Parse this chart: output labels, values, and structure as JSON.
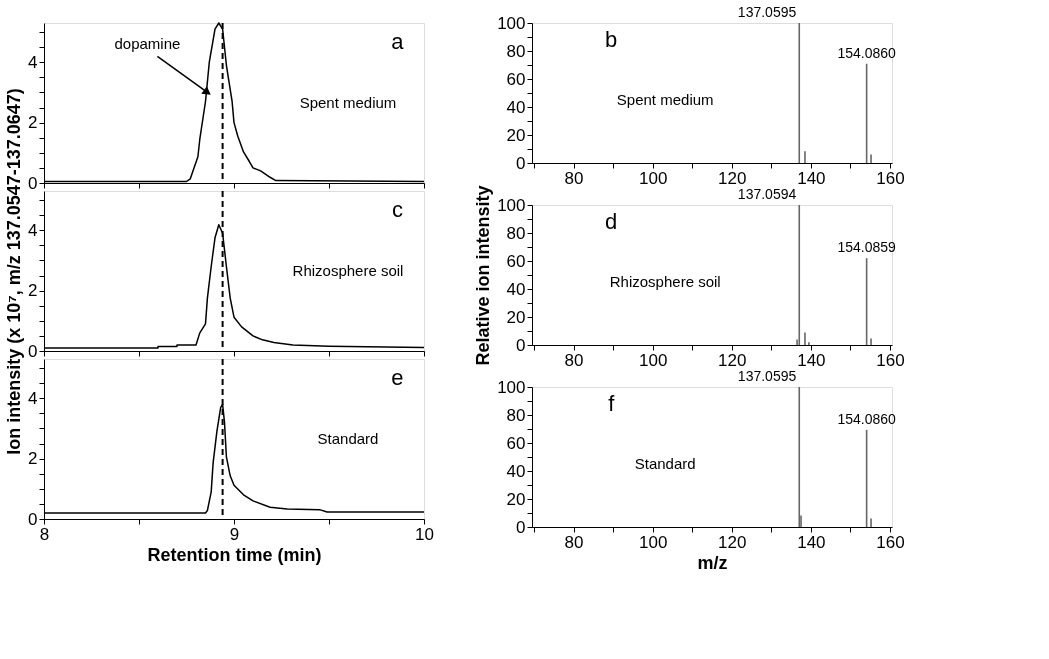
{
  "chart_data": [
    {
      "type": "line",
      "annotations": [
        "a",
        "Spent medium",
        {
          "text": "dopamine",
          "x": 8.86,
          "y": 3.0
        }
      ],
      "series": [
        {
          "color": "#000000",
          "x": [
            8,
            8.75,
            8.77,
            8.81,
            8.82,
            8.85,
            8.87,
            8.9,
            8.92,
            8.94,
            8.96,
            8.99,
            9.0,
            9.02,
            9.05,
            9.08,
            9.1,
            9.14,
            9.19,
            9.22,
            10
          ],
          "values": [
            0.05,
            0.05,
            0.14,
            0.87,
            1.45,
            2.7,
            4.0,
            5.1,
            5.3,
            5.1,
            3.9,
            2.7,
            2.0,
            1.55,
            1.03,
            0.72,
            0.5,
            0.4,
            0.19,
            0.08,
            0.05
          ]
        }
      ],
      "xlim": [
        8,
        10
      ],
      "xticks": [
        8,
        {
          "value": 8.5,
          "label": null
        },
        9,
        {
          "value": 9.5,
          "label": null
        },
        10
      ],
      "ylim": [
        0,
        5.3
      ],
      "yticks": [
        0,
        {
          "value": 0.5,
          "label": null
        },
        {
          "value": 1,
          "label": null
        },
        {
          "value": 1.5,
          "label": null
        },
        2,
        {
          "value": 2.5,
          "label": null
        },
        {
          "value": 3,
          "label": null
        },
        {
          "value": 3.5,
          "label": null
        },
        4,
        {
          "value": 4.5,
          "label": null
        },
        {
          "value": 5,
          "label": null
        }
      ],
      "ref_lines": [
        {
          "axis": "x",
          "value": 8.94,
          "line_style": "dashed",
          "color": "#000000"
        }
      ],
      "tick_labels": "y"
    },
    {
      "type": "bar",
      "annotations": [
        "b",
        "Spent medium",
        {
          "text": "137.0595",
          "x": 137.06,
          "y": 100
        },
        {
          "text": "154.0860",
          "x": 154.09,
          "y": 70.9
        }
      ],
      "series": [
        {
          "color": "#666666",
          "x": [
            137.06,
            138.5,
            154.09,
            155.2
          ],
          "values": [
            100,
            8.4,
            70.9,
            6.1
          ]
        }
      ],
      "xlim": [
        69.5,
        160.5
      ],
      "xticks": [
        {
          "value": 70,
          "label": null
        },
        80,
        {
          "value": 90,
          "label": null
        },
        100,
        {
          "value": 110,
          "label": null
        },
        120,
        {
          "value": 130,
          "label": null
        },
        140,
        {
          "value": 150,
          "label": null
        },
        160
      ],
      "ylim": [
        0,
        100
      ],
      "yticks": [
        0,
        {
          "value": 10,
          "label": null
        },
        20,
        {
          "value": 30,
          "label": null
        },
        40,
        {
          "value": 50,
          "label": null
        },
        60,
        {
          "value": 70,
          "label": null
        },
        80,
        {
          "value": 90,
          "label": null
        },
        100
      ]
    },
    {
      "type": "line",
      "ylabel": "Ion intensity (x 10⁷, m/z 137.0547-137.0647)",
      "annotations": [
        "c",
        "Rhizosphere soil"
      ],
      "series": [
        {
          "color": "#000000",
          "x": [
            8,
            8.6,
            8.6,
            8.7,
            8.7,
            8.8,
            8.82,
            8.85,
            8.86,
            8.88,
            8.9,
            8.92,
            8.94,
            8.96,
            8.98,
            9.0,
            9.04,
            9.1,
            9.15,
            9.21,
            9.31,
            9.5,
            10
          ],
          "values": [
            0.1,
            0.1,
            0.15,
            0.15,
            0.2,
            0.2,
            0.6,
            0.9,
            1.75,
            2.8,
            3.75,
            4.18,
            3.9,
            2.8,
            1.75,
            1.12,
            0.8,
            0.5,
            0.37,
            0.28,
            0.2,
            0.16,
            0.12
          ]
        }
      ],
      "xlim": [
        8,
        10
      ],
      "xticks": [
        8,
        {
          "value": 8.5,
          "label": null
        },
        9,
        {
          "value": 9.5,
          "label": null
        },
        10
      ],
      "ylim": [
        0,
        5.3
      ],
      "yticks": [
        0,
        {
          "value": 0.5,
          "label": null
        },
        {
          "value": 1,
          "label": null
        },
        {
          "value": 1.5,
          "label": null
        },
        2,
        {
          "value": 2.5,
          "label": null
        },
        {
          "value": 3,
          "label": null
        },
        {
          "value": 3.5,
          "label": null
        },
        4,
        {
          "value": 4.5,
          "label": null
        },
        {
          "value": 5,
          "label": null
        }
      ],
      "ref_lines": [
        {
          "axis": "x",
          "value": 8.94,
          "line_style": "dashed",
          "color": "#000000"
        }
      ],
      "tick_labels": "y"
    },
    {
      "type": "bar",
      "ylabel": "Relative ion intensity",
      "annotations": [
        "d",
        "Rhizosphere soil",
        {
          "text": "137.0594",
          "x": 137.06,
          "y": 100
        },
        {
          "text": "154.0859",
          "x": 154.09,
          "y": 62
        }
      ],
      "series": [
        {
          "color": "#666666",
          "x": [
            136.5,
            137.06,
            138.5,
            139.5,
            154.09,
            155.2
          ],
          "values": [
            4,
            100,
            9,
            2,
            62,
            4.7
          ]
        }
      ],
      "xlim": [
        69.5,
        160.5
      ],
      "xticks": [
        {
          "value": 70,
          "label": null
        },
        80,
        {
          "value": 90,
          "label": null
        },
        100,
        {
          "value": 110,
          "label": null
        },
        120,
        {
          "value": 130,
          "label": null
        },
        140,
        {
          "value": 150,
          "label": null
        },
        160
      ],
      "ylim": [
        0,
        100
      ],
      "yticks": [
        0,
        {
          "value": 10,
          "label": null
        },
        20,
        {
          "value": 30,
          "label": null
        },
        40,
        {
          "value": 50,
          "label": null
        },
        60,
        {
          "value": 70,
          "label": null
        },
        80,
        {
          "value": 90,
          "label": null
        },
        100
      ]
    },
    {
      "type": "line",
      "xlabel": "Retention time (min)",
      "annotations": [
        "e",
        "Standard"
      ],
      "series": [
        {
          "color": "#000000",
          "x": [
            8,
            8.85,
            8.86,
            8.88,
            8.89,
            8.91,
            8.93,
            8.94,
            8.95,
            8.96,
            8.98,
            9.0,
            9.05,
            9.1,
            9.19,
            9.28,
            9.45,
            9.49,
            10
          ],
          "values": [
            0.2,
            0.2,
            0.28,
            0.9,
            1.85,
            2.9,
            3.7,
            3.8,
            3.2,
            2.06,
            1.43,
            1.12,
            0.8,
            0.6,
            0.39,
            0.33,
            0.31,
            0.23,
            0.23
          ]
        }
      ],
      "xlim": [
        8,
        10
      ],
      "xticks": [
        8,
        {
          "value": 8.5,
          "label": null
        },
        9,
        {
          "value": 9.5,
          "label": null
        },
        10
      ],
      "ylim": [
        0,
        5.3
      ],
      "yticks": [
        0,
        {
          "value": 0.5,
          "label": null
        },
        {
          "value": 1,
          "label": null
        },
        {
          "value": 1.5,
          "label": null
        },
        2,
        {
          "value": 2.5,
          "label": null
        },
        {
          "value": 3,
          "label": null
        },
        {
          "value": 3.5,
          "label": null
        },
        4,
        {
          "value": 4.5,
          "label": null
        },
        {
          "value": 5,
          "label": null
        }
      ],
      "ref_lines": [
        {
          "axis": "x",
          "value": 8.94,
          "line_style": "dashed",
          "color": "#000000"
        }
      ]
    },
    {
      "type": "bar",
      "xlabel": "m/z",
      "annotations": [
        "f",
        "Standard",
        {
          "text": "137.0595",
          "x": 137.06,
          "y": 100
        },
        {
          "text": "154.0860",
          "x": 154.09,
          "y": 69.4
        }
      ],
      "series": [
        {
          "color": "#666666",
          "x": [
            137.06,
            137.5,
            154.09,
            155.2
          ],
          "values": [
            100,
            8.3,
            69.4,
            6
          ]
        }
      ],
      "xlim": [
        69.5,
        160.5
      ],
      "xticks": [
        {
          "value": 70,
          "label": null
        },
        80,
        {
          "value": 90,
          "label": null
        },
        100,
        {
          "value": 110,
          "label": null
        },
        120,
        {
          "value": 130,
          "label": null
        },
        140,
        {
          "value": 150,
          "label": null
        },
        160
      ],
      "ylim": [
        0,
        100
      ],
      "yticks": [
        0,
        {
          "value": 10,
          "label": null
        },
        20,
        {
          "value": 30,
          "label": null
        },
        40,
        {
          "value": 50,
          "label": null
        },
        60,
        {
          "value": 70,
          "label": null
        },
        80,
        {
          "value": 90,
          "label": null
        },
        100
      ]
    }
  ]
}
